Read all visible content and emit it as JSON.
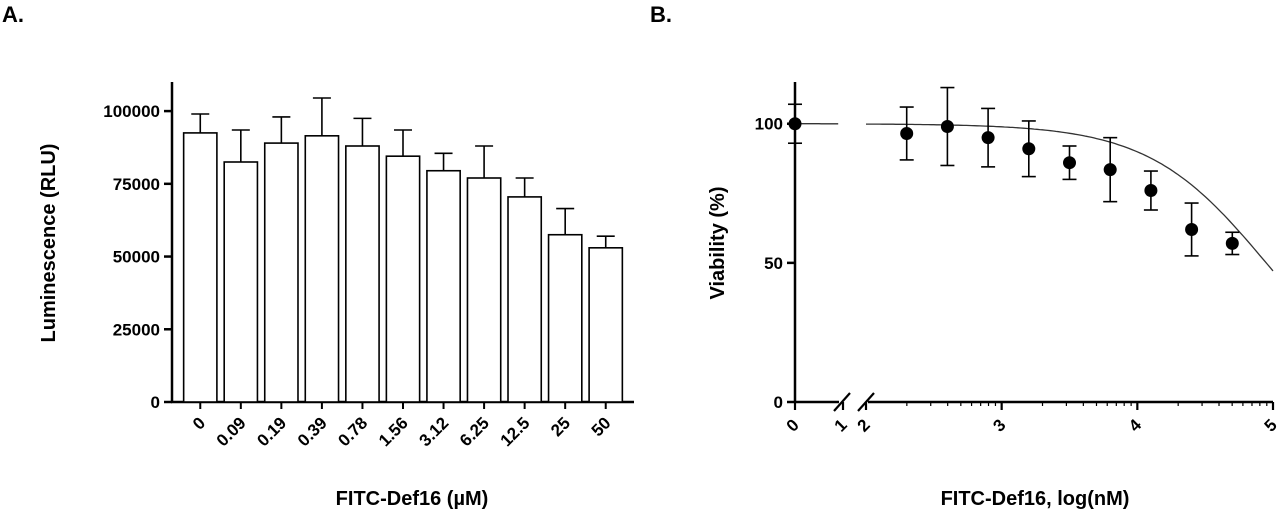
{
  "chart_data": [
    {
      "panel": "A.",
      "type": "bar",
      "xlabel": "FITC-Def16 (µM)",
      "ylabel": "Luminescence (RLU)",
      "ylim": [
        0,
        110000
      ],
      "yticks": [
        "0",
        "25000",
        "50000",
        "75000",
        "100000"
      ],
      "categories": [
        "0",
        "0.09",
        "0.19",
        "0.39",
        "0.78",
        "1.56",
        "3.12",
        "6.25",
        "12.5",
        "25",
        "50"
      ],
      "values": [
        92500,
        82500,
        89000,
        91500,
        88000,
        84500,
        79500,
        77000,
        70500,
        57500,
        53000
      ],
      "error_upper": [
        6500,
        11000,
        9000,
        13000,
        9500,
        9000,
        6000,
        11000,
        6500,
        9000,
        4000
      ],
      "grid": false,
      "bar_fill": "#ffffff",
      "bar_stroke": "#000000"
    },
    {
      "panel": "B.",
      "type": "scatter",
      "xlabel": "FITC-Def16, log(nM)",
      "ylabel": "Viability (%)",
      "ylim": [
        0,
        115
      ],
      "yticks": [
        "0",
        "50",
        "100"
      ],
      "xticks": [
        "0",
        "1",
        "2",
        "3",
        "4",
        "5"
      ],
      "x_axis_break": "between 1 and 2",
      "points": [
        {
          "x": 0,
          "y": 100,
          "err": 7
        },
        {
          "x": 2.3,
          "y": 96.5,
          "err": 9.5
        },
        {
          "x": 2.6,
          "y": 99,
          "err": 14
        },
        {
          "x": 2.9,
          "y": 95,
          "err": 10.5
        },
        {
          "x": 3.2,
          "y": 91,
          "err": 10
        },
        {
          "x": 3.5,
          "y": 86,
          "err": 6
        },
        {
          "x": 3.8,
          "y": 83.5,
          "err": 11.5
        },
        {
          "x": 4.1,
          "y": 76,
          "err": 7
        },
        {
          "x": 4.4,
          "y": 62,
          "err": 9.5
        },
        {
          "x": 4.7,
          "y": 57,
          "err": 4
        }
      ],
      "fit_curve": {
        "model": "sigmoidal dose-response",
        "top": 100,
        "bottom": 0,
        "log_ic50": 4.95,
        "hill": 1
      },
      "grid": false,
      "marker_color": "#000000"
    }
  ]
}
